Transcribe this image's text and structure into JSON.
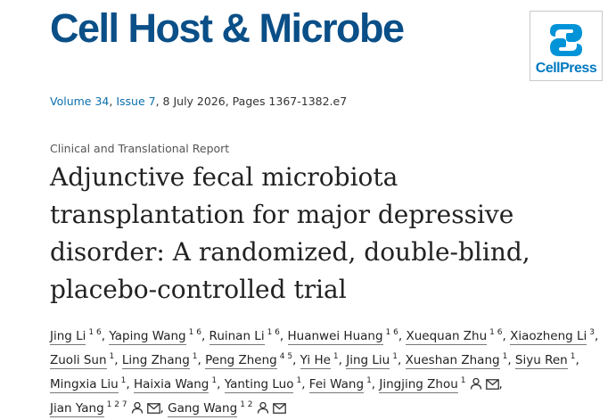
{
  "journal": "Cell Host & Microbe",
  "logo_text": "CellPress",
  "citation": [
    "Volume 34",
    ", ",
    "Issue 7",
    ", 8 July 2026, Pages 1367-1382.e7"
  ],
  "article_type": "Clinical and Translational Report",
  "title": "Adjunctive fecal microbiota transplantation for major depressive disorder: A randomized, double-blind, placebo-controlled trial",
  "author_separator": ",",
  "authors": [
    {
      "name": "Jing Li",
      "affiliations": "1 6",
      "corresponding": false
    },
    {
      "name": "Yaping Wang",
      "affiliations": "1 6",
      "corresponding": false
    },
    {
      "name": "Ruinan Li",
      "affiliations": "1 6",
      "corresponding": false
    },
    {
      "name": "Huanwei Huang",
      "affiliations": "1 6",
      "corresponding": false
    },
    {
      "name": "Xuequan Zhu",
      "affiliations": "1 6",
      "corresponding": false
    },
    {
      "name": "Xiaozheng Li",
      "affiliations": "3",
      "corresponding": false
    },
    {
      "name": "Zuoli Sun",
      "affiliations": "1",
      "corresponding": false
    },
    {
      "name": "Ling Zhang",
      "affiliations": "1",
      "corresponding": false
    },
    {
      "name": "Peng Zheng",
      "affiliations": "4 5",
      "corresponding": false
    },
    {
      "name": "Yi He",
      "affiliations": "1",
      "corresponding": false
    },
    {
      "name": "Jing Liu",
      "affiliations": "1",
      "corresponding": false
    },
    {
      "name": "Xueshan Zhang",
      "affiliations": "1",
      "corresponding": false
    },
    {
      "name": "Siyu Ren",
      "affiliations": "1",
      "corresponding": false
    },
    {
      "name": "Mingxia Liu",
      "affiliations": "1",
      "corresponding": false
    },
    {
      "name": "Haixia Wang",
      "affiliations": "1",
      "corresponding": false
    },
    {
      "name": "Yanting Luo",
      "affiliations": "1",
      "corresponding": false
    },
    {
      "name": "Fei Wang",
      "affiliations": "1",
      "corresponding": false
    },
    {
      "name": "Jingjing Zhou",
      "affiliations": "1",
      "corresponding": true
    },
    {
      "name": "Jian Yang",
      "affiliations": "1 2 7",
      "corresponding": true
    },
    {
      "name": "Gang Wang",
      "affiliations": "1 2",
      "corresponding": true
    }
  ]
}
